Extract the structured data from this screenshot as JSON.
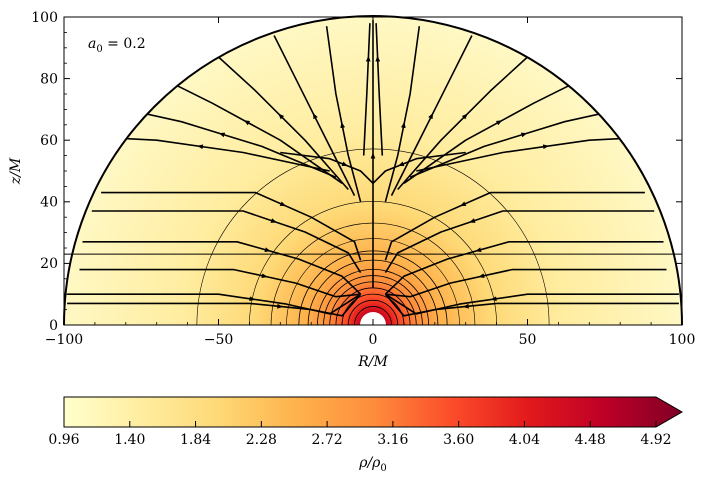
{
  "chart_data": {
    "type": "heatmap",
    "title": "",
    "annotation": "a_0 = 0.2",
    "xlabel": "R/M",
    "ylabel": "z/M",
    "xlim": [
      -100,
      100
    ],
    "ylim": [
      0,
      100
    ],
    "xticks": [
      "−100",
      "−50",
      "0",
      "50",
      "100"
    ],
    "yticks": [
      "0",
      "20",
      "40",
      "60",
      "80",
      "100"
    ],
    "domain_radius": 100,
    "horizontal_marker_z": 23,
    "density_contour_radii": [
      6,
      8,
      10,
      12,
      14,
      16,
      18,
      21,
      24,
      28,
      33,
      40,
      57
    ],
    "colorbar": {
      "label": "ρ/ρ0",
      "min": 0.96,
      "max": 4.92,
      "extend": "max",
      "ticks": [
        "0.96",
        "1.40",
        "1.84",
        "2.28",
        "2.72",
        "3.16",
        "3.60",
        "4.04",
        "4.48",
        "4.92"
      ],
      "colormap": "YlOrRd",
      "colors": [
        "#ffffcc",
        "#ffeda0",
        "#fed976",
        "#feb24c",
        "#fd8d3c",
        "#fc4e2a",
        "#e31a1c",
        "#bd0026",
        "#800026"
      ]
    },
    "streamlines": "velocity field streamlines with arrowheads; outer regions flow inward toward the accretor, upper region flows away along the axis"
  },
  "annotation_display": "a",
  "annotation_sub": "0",
  "annotation_rest": " = 0.2",
  "xlabel_display": "R/M",
  "ylabel_display": "z/M",
  "colorbar_label_display": "ρ/ρ",
  "colorbar_label_sub": "0"
}
